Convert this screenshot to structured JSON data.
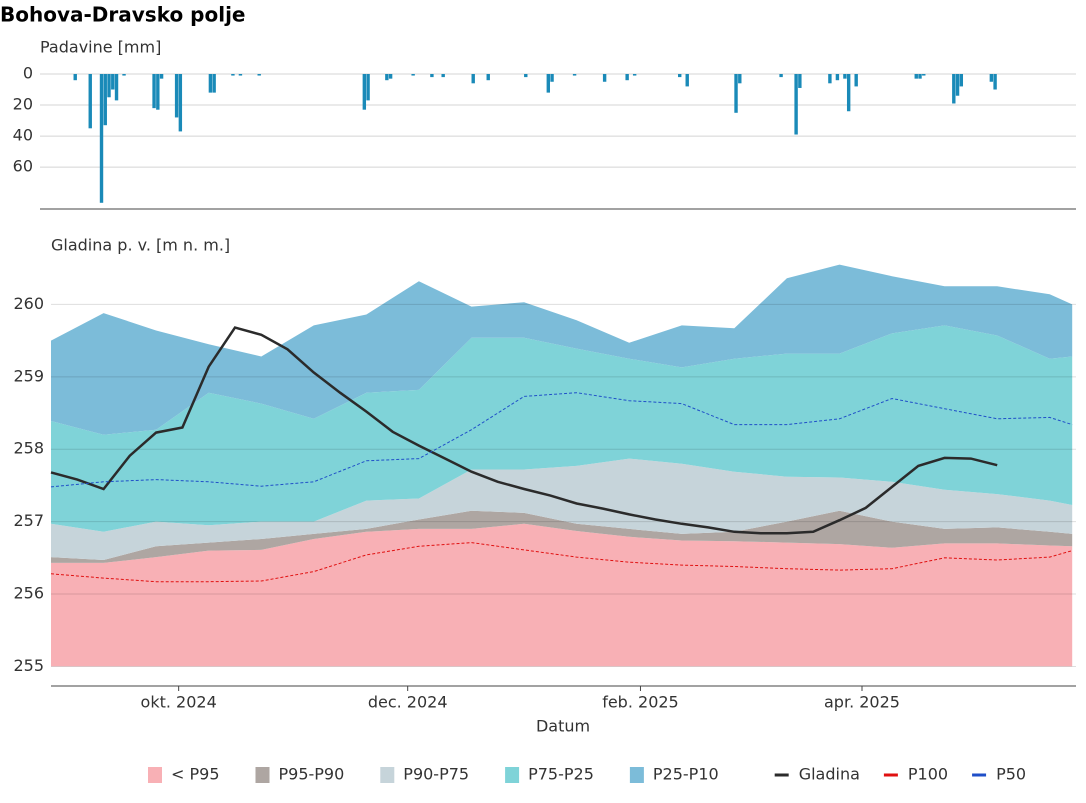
{
  "chart_data": [
    {
      "type": "bar",
      "title": "Bohova-Dravsko polje",
      "ylabel": "Padavine [mm]",
      "color": "#1a8ab8",
      "xlim": [
        "2024-08-28",
        "2025-05-28"
      ],
      "ylim": [
        0,
        87
      ],
      "yticks": [
        0,
        20,
        40,
        60
      ],
      "y_inverted": true,
      "grid": true,
      "x": [
        "2024-09-03",
        "2024-09-07",
        "2024-09-10",
        "2024-09-11",
        "2024-09-12",
        "2024-09-13",
        "2024-09-14",
        "2024-09-16",
        "2024-09-24",
        "2024-09-25",
        "2024-09-26",
        "2024-09-30",
        "2024-10-01",
        "2024-10-09",
        "2024-10-10",
        "2024-10-15",
        "2024-10-17",
        "2024-10-22",
        "2024-11-19",
        "2024-11-20",
        "2024-11-25",
        "2024-11-26",
        "2024-12-02",
        "2024-12-07",
        "2024-12-10",
        "2024-12-18",
        "2024-12-22",
        "2025-01-01",
        "2025-01-07",
        "2025-01-08",
        "2025-01-14",
        "2025-01-22",
        "2025-01-28",
        "2025-01-30",
        "2025-02-11",
        "2025-02-13",
        "2025-02-26",
        "2025-02-27",
        "2025-03-10",
        "2025-03-14",
        "2025-03-15",
        "2025-03-23",
        "2025-03-25",
        "2025-03-27",
        "2025-03-28",
        "2025-03-30",
        "2025-04-15",
        "2025-04-16",
        "2025-04-17",
        "2025-04-25",
        "2025-04-26",
        "2025-04-27",
        "2025-05-05",
        "2025-05-06"
      ],
      "values": [
        4,
        35,
        83,
        33,
        15,
        10,
        17,
        1,
        22,
        23,
        3,
        28,
        37,
        12,
        12,
        1,
        1,
        1,
        23,
        17,
        4,
        3,
        1,
        2,
        2,
        6,
        4,
        2,
        12,
        5,
        1,
        5,
        4,
        1,
        2,
        8,
        25,
        6,
        2,
        39,
        9,
        6,
        4,
        3,
        24,
        8,
        3,
        3,
        1,
        19,
        14,
        8,
        5,
        10
      ]
    },
    {
      "type": "band_line",
      "ylabel": "Gladina p. v. [m n. m.]",
      "xlabel": "Datum",
      "xlim": [
        "2024-08-28",
        "2025-05-28"
      ],
      "xticks": [
        {
          "value": "2024-10-01",
          "label": "okt. 2024"
        },
        {
          "value": "2024-12-01",
          "label": "dec. 2024"
        },
        {
          "value": "2025-02-01",
          "label": "feb. 2025"
        },
        {
          "value": "2025-04-01",
          "label": "apr. 2025"
        }
      ],
      "ylim": [
        254.73,
        261
      ],
      "yticks": [
        255,
        256,
        257,
        258,
        259,
        260
      ],
      "grid": true,
      "band_base": 255,
      "x": [
        "2024-08-28",
        "2024-09-11",
        "2024-09-25",
        "2024-10-09",
        "2024-10-23",
        "2024-11-06",
        "2024-11-20",
        "2024-12-04",
        "2024-12-18",
        "2025-01-01",
        "2025-01-15",
        "2025-01-29",
        "2025-02-12",
        "2025-02-26",
        "2025-03-12",
        "2025-03-26",
        "2025-04-09",
        "2025-04-23",
        "2025-05-07",
        "2025-05-21",
        "2025-05-27"
      ],
      "bands": [
        {
          "name": "< P95",
          "color": "#f8b0b5",
          "values": [
            256.43,
            256.43,
            256.51,
            256.6,
            256.61,
            256.76,
            256.86,
            256.9,
            256.9,
            256.97,
            256.87,
            256.79,
            256.74,
            256.73,
            256.71,
            256.69,
            256.64,
            256.7,
            256.7,
            256.67,
            256.66
          ]
        },
        {
          "name": "P95-P90",
          "color": "#aea6a2",
          "values": [
            256.51,
            256.47,
            256.66,
            256.71,
            256.76,
            256.83,
            256.9,
            257.03,
            257.15,
            257.12,
            256.97,
            256.9,
            256.83,
            256.86,
            257.0,
            257.15,
            257.0,
            256.9,
            256.92,
            256.86,
            256.83
          ]
        },
        {
          "name": "P90-P75",
          "color": "#c6d4da",
          "values": [
            256.97,
            256.86,
            257.0,
            256.95,
            257.0,
            257.0,
            257.29,
            257.32,
            257.72,
            257.72,
            257.77,
            257.87,
            257.8,
            257.69,
            257.62,
            257.61,
            257.55,
            257.44,
            257.38,
            257.29,
            257.23
          ]
        },
        {
          "name": "P75-P25",
          "color": "#7fd3d8",
          "values": [
            258.39,
            258.2,
            258.27,
            258.78,
            258.63,
            258.42,
            258.78,
            258.82,
            259.54,
            259.54,
            259.39,
            259.25,
            259.13,
            259.25,
            259.32,
            259.32,
            259.6,
            259.71,
            259.57,
            259.25,
            259.28
          ]
        },
        {
          "name": "P25-P10",
          "color": "#7cbcd9",
          "values": [
            259.5,
            259.88,
            259.64,
            259.45,
            259.28,
            259.71,
            259.86,
            260.32,
            259.97,
            260.03,
            259.78,
            259.47,
            259.71,
            259.67,
            260.36,
            260.55,
            260.39,
            260.25,
            260.25,
            260.14,
            260.0
          ]
        }
      ],
      "series": [
        {
          "name": "Gladina",
          "color": "#2b2b2b",
          "style": "solid",
          "x": [
            "2024-08-28",
            "2024-09-04",
            "2024-09-11",
            "2024-09-18",
            "2024-09-25",
            "2024-10-02",
            "2024-10-09",
            "2024-10-16",
            "2024-10-23",
            "2024-10-30",
            "2024-11-06",
            "2024-11-13",
            "2024-11-20",
            "2024-11-27",
            "2024-12-04",
            "2024-12-11",
            "2024-12-18",
            "2024-12-25",
            "2025-01-01",
            "2025-01-08",
            "2025-01-15",
            "2025-01-22",
            "2025-01-29",
            "2025-02-05",
            "2025-02-12",
            "2025-02-19",
            "2025-02-26",
            "2025-03-05",
            "2025-03-12",
            "2025-03-19",
            "2025-03-26",
            "2025-04-02",
            "2025-04-09",
            "2025-04-16",
            "2025-04-23",
            "2025-04-30",
            "2025-05-07"
          ],
          "values": [
            257.68,
            257.58,
            257.45,
            257.91,
            258.23,
            258.3,
            259.14,
            259.68,
            259.58,
            259.38,
            259.06,
            258.78,
            258.52,
            258.24,
            258.05,
            257.87,
            257.69,
            257.55,
            257.45,
            257.36,
            257.25,
            257.18,
            257.1,
            257.03,
            256.97,
            256.92,
            256.86,
            256.84,
            256.84,
            256.86,
            257.02,
            257.19,
            257.48,
            257.77,
            257.88,
            257.87,
            257.78
          ]
        },
        {
          "name": "P100",
          "color": "#e01010",
          "style": "dashed",
          "values": [
            256.28,
            256.22,
            256.17,
            256.17,
            256.18,
            256.31,
            256.54,
            256.66,
            256.71,
            256.61,
            256.51,
            256.44,
            256.4,
            256.38,
            256.35,
            256.33,
            256.35,
            256.5,
            256.47,
            256.51,
            256.6
          ]
        },
        {
          "name": "P50",
          "color": "#1f4fc8",
          "style": "dashed",
          "values": [
            257.48,
            257.55,
            257.58,
            257.55,
            257.49,
            257.55,
            257.84,
            257.87,
            258.27,
            258.73,
            258.78,
            258.67,
            258.63,
            258.34,
            258.34,
            258.42,
            258.7,
            258.56,
            258.42,
            258.44,
            258.34
          ]
        }
      ]
    }
  ]
}
